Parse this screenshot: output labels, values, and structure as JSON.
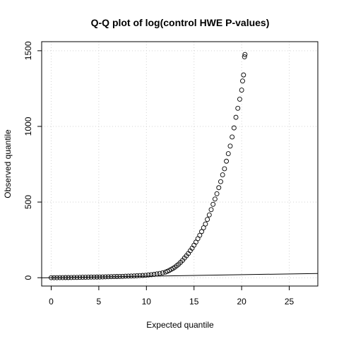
{
  "chart_data": {
    "type": "scatter",
    "title": "Q-Q plot of log(control HWE P-values)",
    "xlabel": "Expected quantile",
    "ylabel": "Observed quantile",
    "xlim": [
      -1,
      28
    ],
    "ylim": [
      -55,
      1560
    ],
    "xticks": [
      0,
      5,
      10,
      15,
      20,
      25
    ],
    "yticks": [
      0,
      500,
      1000,
      1500
    ],
    "grid": true,
    "reference_line": {
      "slope": 1,
      "intercept": 0
    },
    "points": [
      [
        0,
        0
      ],
      [
        0.3,
        0
      ],
      [
        0.6,
        0
      ],
      [
        0.9,
        0.5
      ],
      [
        1.2,
        0.5
      ],
      [
        1.5,
        1
      ],
      [
        1.8,
        1
      ],
      [
        2.1,
        1.5
      ],
      [
        2.4,
        2
      ],
      [
        2.7,
        2
      ],
      [
        3,
        2.5
      ],
      [
        3.3,
        3
      ],
      [
        3.6,
        3
      ],
      [
        3.9,
        3.5
      ],
      [
        4.2,
        4
      ],
      [
        4.5,
        4
      ],
      [
        4.8,
        4.5
      ],
      [
        5.1,
        5
      ],
      [
        5.4,
        5.5
      ],
      [
        5.7,
        6
      ],
      [
        6,
        6.5
      ],
      [
        6.3,
        7
      ],
      [
        6.6,
        7.5
      ],
      [
        6.9,
        8
      ],
      [
        7.2,
        8.5
      ],
      [
        7.5,
        9
      ],
      [
        7.8,
        10
      ],
      [
        8.1,
        10.5
      ],
      [
        8.4,
        11
      ],
      [
        8.7,
        12
      ],
      [
        9,
        13
      ],
      [
        9.3,
        14
      ],
      [
        9.6,
        15
      ],
      [
        9.9,
        16
      ],
      [
        10.2,
        18
      ],
      [
        10.5,
        20
      ],
      [
        10.8,
        22
      ],
      [
        11.1,
        25
      ],
      [
        11.4,
        28
      ],
      [
        11.7,
        32
      ],
      [
        12,
        37
      ],
      [
        12.2,
        42
      ],
      [
        12.4,
        48
      ],
      [
        12.6,
        55
      ],
      [
        12.8,
        62
      ],
      [
        13,
        70
      ],
      [
        13.2,
        80
      ],
      [
        13.4,
        90
      ],
      [
        13.6,
        102
      ],
      [
        13.8,
        115
      ],
      [
        14,
        130
      ],
      [
        14.2,
        145
      ],
      [
        14.4,
        160
      ],
      [
        14.6,
        178
      ],
      [
        14.8,
        195
      ],
      [
        15,
        215
      ],
      [
        15.2,
        235
      ],
      [
        15.4,
        258
      ],
      [
        15.6,
        280
      ],
      [
        15.8,
        305
      ],
      [
        16,
        330
      ],
      [
        16.2,
        355
      ],
      [
        16.4,
        385
      ],
      [
        16.6,
        415
      ],
      [
        16.8,
        450
      ],
      [
        17,
        485
      ],
      [
        17.2,
        520
      ],
      [
        17.4,
        555
      ],
      [
        17.6,
        595
      ],
      [
        17.8,
        635
      ],
      [
        18,
        680
      ],
      [
        18.2,
        720
      ],
      [
        18.4,
        770
      ],
      [
        18.6,
        820
      ],
      [
        18.8,
        870
      ],
      [
        19,
        930
      ],
      [
        19.2,
        990
      ],
      [
        19.4,
        1060
      ],
      [
        19.6,
        1120
      ],
      [
        19.8,
        1180
      ],
      [
        20,
        1240
      ],
      [
        20.1,
        1300
      ],
      [
        20.2,
        1340
      ],
      [
        20.3,
        1460
      ],
      [
        20.35,
        1475
      ]
    ]
  }
}
